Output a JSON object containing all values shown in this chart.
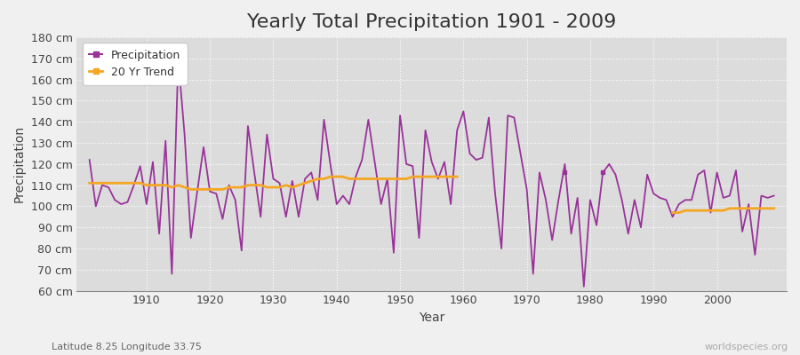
{
  "title": "Yearly Total Precipitation 1901 - 2009",
  "xlabel": "Year",
  "ylabel": "Precipitation",
  "subtitle": "Latitude 8.25 Longitude 33.75",
  "watermark": "worldspecies.org",
  "years": [
    1901,
    1902,
    1903,
    1904,
    1905,
    1906,
    1907,
    1908,
    1909,
    1910,
    1911,
    1912,
    1913,
    1914,
    1915,
    1916,
    1917,
    1918,
    1919,
    1920,
    1921,
    1922,
    1923,
    1924,
    1925,
    1926,
    1927,
    1928,
    1929,
    1930,
    1931,
    1932,
    1933,
    1934,
    1935,
    1936,
    1937,
    1938,
    1939,
    1940,
    1941,
    1942,
    1943,
    1944,
    1945,
    1946,
    1947,
    1948,
    1949,
    1950,
    1951,
    1952,
    1953,
    1954,
    1955,
    1956,
    1957,
    1958,
    1959,
    1960,
    1961,
    1962,
    1963,
    1964,
    1965,
    1966,
    1967,
    1968,
    1969,
    1970,
    1971,
    1972,
    1973,
    1974,
    1975,
    1976,
    1977,
    1978,
    1979,
    1980,
    1981,
    1982,
    1983,
    1984,
    1985,
    1986,
    1987,
    1988,
    1989,
    1990,
    1991,
    1992,
    1993,
    1994,
    1995,
    1996,
    1997,
    1998,
    1999,
    2000,
    2001,
    2002,
    2003,
    2004,
    2005,
    2006,
    2007,
    2008,
    2009
  ],
  "precipitation": [
    122,
    100,
    110,
    109,
    103,
    101,
    102,
    110,
    119,
    101,
    121,
    87,
    131,
    68,
    170,
    134,
    85,
    107,
    128,
    107,
    106,
    94,
    110,
    103,
    79,
    138,
    116,
    95,
    134,
    113,
    111,
    95,
    112,
    95,
    113,
    116,
    103,
    141,
    120,
    101,
    105,
    101,
    114,
    122,
    141,
    121,
    101,
    113,
    78,
    143,
    120,
    119,
    85,
    136,
    121,
    113,
    121,
    101,
    136,
    145,
    125,
    122,
    123,
    142,
    106,
    80,
    143,
    142,
    125,
    108,
    68,
    116,
    103,
    84,
    103,
    120,
    87,
    104,
    62,
    103,
    91,
    116,
    120,
    115,
    103,
    87,
    103,
    90,
    115,
    106,
    104,
    103,
    95,
    101,
    103,
    103,
    115,
    117,
    97,
    116,
    104,
    105,
    117,
    88,
    101,
    77,
    105,
    104,
    105
  ],
  "trend_years_seg1": [
    1901,
    1902,
    1903,
    1904,
    1905,
    1906,
    1907,
    1908,
    1909,
    1910,
    1911,
    1912,
    1913,
    1914,
    1915,
    1916,
    1917,
    1918,
    1919,
    1920,
    1921,
    1922,
    1923,
    1924,
    1925,
    1926,
    1927,
    1928,
    1929,
    1930,
    1931,
    1932,
    1933,
    1934,
    1935,
    1936,
    1937,
    1938,
    1939,
    1940,
    1941,
    1942,
    1943,
    1944,
    1945,
    1946,
    1947,
    1948,
    1949,
    1950,
    1951,
    1952,
    1953,
    1954,
    1955,
    1956,
    1957,
    1958,
    1959
  ],
  "trend_values_seg1": [
    111,
    111,
    111,
    111,
    111,
    111,
    111,
    111,
    111,
    110,
    110,
    110,
    110,
    109,
    110,
    109,
    108,
    108,
    108,
    108,
    108,
    108,
    109,
    109,
    109,
    110,
    110,
    110,
    109,
    109,
    109,
    110,
    109,
    110,
    111,
    112,
    113,
    113,
    114,
    114,
    114,
    113,
    113,
    113,
    113,
    113,
    113,
    113,
    113,
    113,
    113,
    114,
    114,
    114,
    114,
    114,
    114,
    114,
    114
  ],
  "trend_years_seg2": [
    1993,
    1994,
    1995,
    1996,
    1997,
    1998,
    1999,
    2000,
    2001,
    2002,
    2003,
    2004,
    2005,
    2006,
    2007,
    2008,
    2009
  ],
  "trend_values_seg2": [
    97,
    97,
    98,
    98,
    98,
    98,
    98,
    98,
    98,
    99,
    99,
    99,
    99,
    99,
    99,
    99,
    99
  ],
  "isolated_points": [
    {
      "year": 1976,
      "value": 116
    },
    {
      "year": 1982,
      "value": 116
    }
  ],
  "precip_color": "#993399",
  "trend_color": "#f5a623",
  "fig_bg_color": "#f0f0f0",
  "plot_bg_color": "#dcdcdc",
  "ylim": [
    60,
    180
  ],
  "yticks": [
    60,
    70,
    80,
    90,
    100,
    110,
    120,
    130,
    140,
    150,
    160,
    170,
    180
  ],
  "xlim": [
    1899,
    2011
  ],
  "xticks": [
    1910,
    1920,
    1930,
    1940,
    1950,
    1960,
    1970,
    1980,
    1990,
    2000
  ],
  "title_fontsize": 16,
  "label_fontsize": 10,
  "tick_fontsize": 9,
  "legend_fontsize": 9
}
